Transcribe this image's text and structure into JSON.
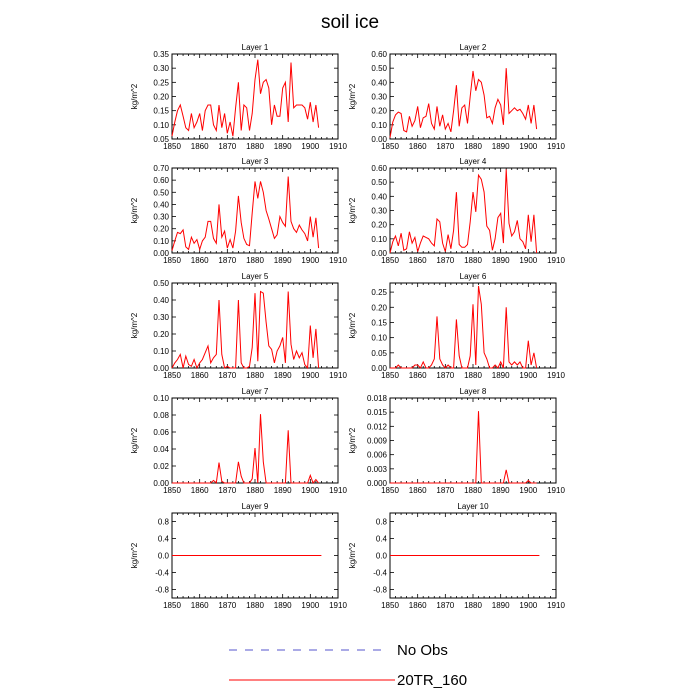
{
  "figure": {
    "title": "soil ice",
    "legend": [
      {
        "label": "No Obs",
        "color": "#5555cc",
        "dash": true
      },
      {
        "label": "20TR_160",
        "color": "#ff0000",
        "dash": false
      }
    ]
  },
  "chart_data": [
    {
      "type": "line",
      "title": "Layer 1",
      "ylabel": "kg/m^2",
      "xlim": [
        1850,
        1910
      ],
      "x_ticks": [
        1850,
        1860,
        1870,
        1880,
        1890,
        1900,
        1910
      ],
      "ylim": [
        0.05,
        0.35
      ],
      "y_ticks": [
        "0.05",
        "0.10",
        "0.15",
        "0.20",
        "0.25",
        "0.30",
        "0.35"
      ],
      "series": [
        {
          "name": "20TR_160",
          "x_start": 1850,
          "values": [
            0.06,
            0.11,
            0.15,
            0.17,
            0.13,
            0.09,
            0.08,
            0.14,
            0.09,
            0.11,
            0.14,
            0.08,
            0.15,
            0.17,
            0.17,
            0.1,
            0.08,
            0.17,
            0.09,
            0.14,
            0.07,
            0.11,
            0.06,
            0.16,
            0.25,
            0.08,
            0.17,
            0.16,
            0.08,
            0.14,
            0.26,
            0.33,
            0.21,
            0.25,
            0.26,
            0.23,
            0.1,
            0.17,
            0.13,
            0.13,
            0.23,
            0.25,
            0.11,
            0.32,
            0.16,
            0.17,
            0.17,
            0.17,
            0.16,
            0.12,
            0.18,
            0.11,
            0.17,
            0.09
          ]
        }
      ]
    },
    {
      "type": "line",
      "title": "Layer 2",
      "ylabel": "kg/m^2",
      "xlim": [
        1850,
        1910
      ],
      "x_ticks": [
        1850,
        1860,
        1870,
        1880,
        1890,
        1900,
        1910
      ],
      "ylim": [
        0,
        0.6
      ],
      "y_ticks": [
        "0.00",
        "0.10",
        "0.20",
        "0.30",
        "0.40",
        "0.50",
        "0.60"
      ],
      "series": [
        {
          "name": "20TR_160",
          "x_start": 1850,
          "values": [
            0.01,
            0.12,
            0.17,
            0.19,
            0.18,
            0.06,
            0.05,
            0.16,
            0.09,
            0.13,
            0.23,
            0.08,
            0.15,
            0.16,
            0.25,
            0.11,
            0.07,
            0.23,
            0.09,
            0.17,
            0.07,
            0.11,
            0.05,
            0.2,
            0.38,
            0.09,
            0.22,
            0.24,
            0.11,
            0.3,
            0.48,
            0.34,
            0.42,
            0.4,
            0.31,
            0.15,
            0.16,
            0.11,
            0.22,
            0.28,
            0.24,
            0.1,
            0.5,
            0.18,
            0.2,
            0.22,
            0.2,
            0.21,
            0.18,
            0.14,
            0.24,
            0.11,
            0.24,
            0.07
          ]
        }
      ]
    },
    {
      "type": "line",
      "title": "Layer 3",
      "ylabel": "kg/m^2",
      "xlim": [
        1850,
        1910
      ],
      "x_ticks": [
        1850,
        1860,
        1870,
        1880,
        1890,
        1900,
        1910
      ],
      "ylim": [
        0,
        0.7
      ],
      "y_ticks": [
        "0.00",
        "0.10",
        "0.20",
        "0.30",
        "0.40",
        "0.50",
        "0.60",
        "0.70"
      ],
      "series": [
        {
          "name": "20TR_160",
          "x_start": 1850,
          "values": [
            0.02,
            0.1,
            0.17,
            0.16,
            0.19,
            0.05,
            0.03,
            0.13,
            0.08,
            0.11,
            0.03,
            0.1,
            0.13,
            0.26,
            0.26,
            0.12,
            0.08,
            0.4,
            0.13,
            0.18,
            0.04,
            0.11,
            0.04,
            0.18,
            0.47,
            0.25,
            0.12,
            0.07,
            0.06,
            0.33,
            0.59,
            0.45,
            0.59,
            0.5,
            0.35,
            0.28,
            0.2,
            0.12,
            0.15,
            0.3,
            0.25,
            0.22,
            0.63,
            0.26,
            0.2,
            0.17,
            0.23,
            0.19,
            0.16,
            0.1,
            0.3,
            0.13,
            0.29,
            0.04
          ]
        }
      ]
    },
    {
      "type": "line",
      "title": "Layer 4",
      "ylabel": "kg/m^2",
      "xlim": [
        1850,
        1910
      ],
      "x_ticks": [
        1850,
        1860,
        1870,
        1880,
        1890,
        1900,
        1910
      ],
      "ylim": [
        0,
        0.6
      ],
      "y_ticks": [
        "0.00",
        "0.10",
        "0.20",
        "0.30",
        "0.40",
        "0.50",
        "0.60"
      ],
      "series": [
        {
          "name": "20TR_160",
          "x_start": 1850,
          "values": [
            0.0,
            0.08,
            0.12,
            0.05,
            0.14,
            0.02,
            0.03,
            0.15,
            0.07,
            0.11,
            0.01,
            0.07,
            0.12,
            0.11,
            0.1,
            0.07,
            0.05,
            0.24,
            0.22,
            0.07,
            0.01,
            0.13,
            0.03,
            0.16,
            0.43,
            0.06,
            0.04,
            0.04,
            0.06,
            0.22,
            0.43,
            0.29,
            0.55,
            0.52,
            0.43,
            0.19,
            0.16,
            0.02,
            0.1,
            0.25,
            0.28,
            0.07,
            0.59,
            0.21,
            0.12,
            0.15,
            0.23,
            0.1,
            0.08,
            0.03,
            0.27,
            0.08,
            0.27,
            0.0
          ]
        }
      ]
    },
    {
      "type": "line",
      "title": "Layer 5",
      "ylabel": "kg/m^2",
      "xlim": [
        1850,
        1910
      ],
      "x_ticks": [
        1850,
        1860,
        1870,
        1880,
        1890,
        1900,
        1910
      ],
      "ylim": [
        0,
        0.5
      ],
      "y_ticks": [
        "0.00",
        "0.10",
        "0.20",
        "0.30",
        "0.40",
        "0.50"
      ],
      "series": [
        {
          "name": "20TR_160",
          "x_start": 1850,
          "values": [
            0.0,
            0.03,
            0.05,
            0.08,
            0.0,
            0.07,
            0.02,
            0.01,
            0.05,
            0.0,
            0.03,
            0.05,
            0.09,
            0.13,
            0.03,
            0.06,
            0.08,
            0.4,
            0.08,
            0.0,
            0.01,
            0.0,
            0.0,
            0.0,
            0.4,
            0.03,
            0.0,
            0.0,
            0.01,
            0.12,
            0.44,
            0.04,
            0.45,
            0.44,
            0.27,
            0.13,
            0.11,
            0.03,
            0.1,
            0.13,
            0.18,
            0.03,
            0.45,
            0.14,
            0.05,
            0.1,
            0.06,
            0.09,
            0.02,
            0.0,
            0.25,
            0.06,
            0.23,
            0.0
          ]
        }
      ]
    },
    {
      "type": "line",
      "title": "Layer 6",
      "ylabel": "kg/m^2",
      "xlim": [
        1850,
        1910
      ],
      "x_ticks": [
        1850,
        1860,
        1870,
        1880,
        1890,
        1900,
        1910
      ],
      "ylim": [
        0,
        0.28
      ],
      "y_ticks": [
        "0.00",
        "0.05",
        "0.10",
        "0.15",
        "0.20",
        "0.25"
      ],
      "series": [
        {
          "name": "20TR_160",
          "x_start": 1850,
          "values": [
            0.0,
            0.0,
            0.0,
            0.01,
            0.0,
            0.0,
            0.0,
            0.0,
            0.0,
            0.01,
            0.01,
            0.0,
            0.02,
            0.0,
            0.0,
            0.01,
            0.03,
            0.17,
            0.03,
            0.01,
            0.0,
            0.01,
            0.0,
            0.0,
            0.16,
            0.04,
            0.0,
            0.0,
            0.0,
            0.04,
            0.21,
            0.01,
            0.27,
            0.21,
            0.05,
            0.03,
            0.0,
            0.0,
            0.01,
            0.0,
            0.02,
            0.0,
            0.2,
            0.02,
            0.01,
            0.02,
            0.01,
            0.02,
            0.0,
            0.0,
            0.09,
            0.01,
            0.05,
            0.0
          ]
        }
      ]
    },
    {
      "type": "line",
      "title": "Layer 7",
      "ylabel": "kg/m^2",
      "xlim": [
        1850,
        1910
      ],
      "x_ticks": [
        1850,
        1860,
        1870,
        1880,
        1890,
        1900,
        1910
      ],
      "ylim": [
        0,
        0.1
      ],
      "y_ticks": [
        "0.00",
        "0.02",
        "0.04",
        "0.06",
        "0.08",
        "0.10"
      ],
      "series": [
        {
          "name": "20TR_160",
          "x_start": 1850,
          "values": [
            0.0,
            0.0,
            0.0,
            0.0,
            0.0,
            0.0,
            0.0,
            0.0,
            0.0,
            0.0,
            0.0,
            0.0,
            0.0,
            0.0,
            0.0,
            0.003,
            0.0,
            0.024,
            0.002,
            0.0,
            0.0,
            0.0,
            0.0,
            0.0,
            0.025,
            0.008,
            0.0,
            0.0,
            0.0,
            0.005,
            0.041,
            0.0,
            0.081,
            0.025,
            0.0,
            0.0,
            0.0,
            0.0,
            0.0,
            0.0,
            0.0,
            0.0,
            0.062,
            0.0,
            0.0,
            0.0,
            0.0,
            0.0,
            0.0,
            0.0,
            0.009,
            0.0,
            0.004,
            0.0
          ]
        }
      ]
    },
    {
      "type": "line",
      "title": "Layer 8",
      "ylabel": "kg/m^2",
      "xlim": [
        1850,
        1910
      ],
      "x_ticks": [
        1850,
        1860,
        1870,
        1880,
        1890,
        1900,
        1910
      ],
      "ylim": [
        0,
        0.018
      ],
      "y_ticks": [
        "0.000",
        "0.003",
        "0.006",
        "0.009",
        "0.012",
        "0.015",
        "0.018"
      ],
      "series": [
        {
          "name": "20TR_160",
          "x_start": 1850,
          "values": [
            0,
            0,
            0,
            0,
            0,
            0,
            0,
            0,
            0,
            0,
            0,
            0,
            0,
            0,
            0,
            0,
            0,
            0,
            0,
            0,
            0,
            0,
            0,
            0,
            0,
            0,
            0,
            0,
            0,
            0,
            0,
            0,
            0.0152,
            0,
            0,
            0,
            0,
            0,
            0,
            0,
            0,
            0,
            0.0028,
            0,
            0,
            0,
            0,
            0,
            0,
            0,
            0.0005,
            0,
            0,
            0
          ]
        }
      ]
    },
    {
      "type": "line",
      "title": "Layer 9",
      "ylabel": "kg/m^2",
      "xlim": [
        1850,
        1910
      ],
      "x_ticks": [
        1850,
        1860,
        1870,
        1880,
        1890,
        1900,
        1910
      ],
      "ylim": [
        -1.0,
        1.0
      ],
      "y_ticks": [
        "-0.8",
        "-0.4",
        "0.0",
        "0.4",
        "0.8"
      ],
      "y_tick_values": [
        -0.8,
        -0.4,
        0,
        0.4,
        0.8
      ],
      "series": [
        {
          "name": "20TR_160",
          "x_start": 1850,
          "values": [
            0,
            0,
            0,
            0,
            0,
            0,
            0,
            0,
            0,
            0,
            0,
            0,
            0,
            0,
            0,
            0,
            0,
            0,
            0,
            0,
            0,
            0,
            0,
            0,
            0,
            0,
            0,
            0,
            0,
            0,
            0,
            0,
            0,
            0,
            0,
            0,
            0,
            0,
            0,
            0,
            0,
            0,
            0,
            0,
            0,
            0,
            0,
            0,
            0,
            0,
            0,
            0,
            0,
            0,
            0
          ]
        }
      ]
    },
    {
      "type": "line",
      "title": "Layer 10",
      "ylabel": "kg/m^2",
      "xlim": [
        1850,
        1910
      ],
      "x_ticks": [
        1850,
        1860,
        1870,
        1880,
        1890,
        1900,
        1910
      ],
      "ylim": [
        -1.0,
        1.0
      ],
      "y_ticks": [
        "-0.8",
        "-0.4",
        "0.0",
        "0.4",
        "0.8"
      ],
      "y_tick_values": [
        -0.8,
        -0.4,
        0,
        0.4,
        0.8
      ],
      "series": [
        {
          "name": "20TR_160",
          "x_start": 1850,
          "values": [
            0,
            0,
            0,
            0,
            0,
            0,
            0,
            0,
            0,
            0,
            0,
            0,
            0,
            0,
            0,
            0,
            0,
            0,
            0,
            0,
            0,
            0,
            0,
            0,
            0,
            0,
            0,
            0,
            0,
            0,
            0,
            0,
            0,
            0,
            0,
            0,
            0,
            0,
            0,
            0,
            0,
            0,
            0,
            0,
            0,
            0,
            0,
            0,
            0,
            0,
            0,
            0,
            0,
            0,
            0
          ]
        }
      ]
    }
  ]
}
